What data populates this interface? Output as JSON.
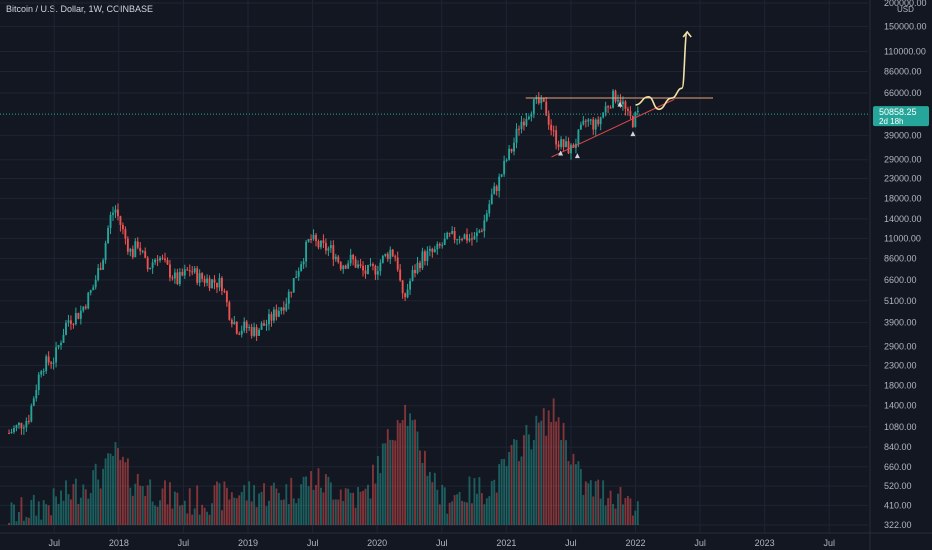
{
  "header": {
    "title": "Bitcoin / U.S. Dollar, 1W, COINBASE",
    "currency": "USD"
  },
  "price_tag": {
    "price": "50858.25",
    "countdown": "2d 18h"
  },
  "colors": {
    "background": "#131722",
    "up": "#26a69a",
    "down": "#ef5350",
    "grid": "#1f2433",
    "axis_text": "#b2b5be",
    "resistance": "#e8a07c",
    "support": "#e04848",
    "projection": "#f2e2a6",
    "price_tag": "#26a69a"
  },
  "chart_data": {
    "type": "candlestick",
    "title": "Bitcoin / U.S. Dollar, 1W, COINBASE",
    "y_scale": "log",
    "y_range": [
      322,
      200000
    ],
    "y_ticks": [
      "200000.00",
      "150000.00",
      "110000.00",
      "86000.00",
      "66000.00",
      "50858.25",
      "39000.00",
      "29000.00",
      "23000.00",
      "18000.00",
      "14000.00",
      "11000.00",
      "8600.00",
      "6600.00",
      "5100.00",
      "3900.00",
      "2900.00",
      "2300.00",
      "1800.00",
      "1400.00",
      "1080.00",
      "840.00",
      "660.00",
      "520.00",
      "410.00",
      "322.00"
    ],
    "x_range": [
      "2017-03",
      "2023-12"
    ],
    "x_ticks": [
      {
        "label": "Jul",
        "date": 2017.5
      },
      {
        "label": "2018",
        "date": 2018.0
      },
      {
        "label": "Jul",
        "date": 2018.5
      },
      {
        "label": "2019",
        "date": 2019.0
      },
      {
        "label": "Jul",
        "date": 2019.5
      },
      {
        "label": "2020",
        "date": 2020.0
      },
      {
        "label": "Jul",
        "date": 2020.5
      },
      {
        "label": "2021",
        "date": 2021.0
      },
      {
        "label": "Jul",
        "date": 2021.5
      },
      {
        "label": "2022",
        "date": 2022.0
      },
      {
        "label": "Jul",
        "date": 2022.5
      },
      {
        "label": "2023",
        "date": 2023.0
      },
      {
        "label": "Jul",
        "date": 2023.5
      }
    ],
    "price_path": [
      [
        2017.15,
        1000
      ],
      [
        2017.3,
        1200
      ],
      [
        2017.4,
        2300
      ],
      [
        2017.5,
        2500
      ],
      [
        2017.6,
        4000
      ],
      [
        2017.7,
        4400
      ],
      [
        2017.8,
        6000
      ],
      [
        2017.88,
        9000
      ],
      [
        2017.93,
        14000
      ],
      [
        2017.97,
        16000
      ],
      [
        2018.05,
        11000
      ],
      [
        2018.1,
        9000
      ],
      [
        2018.15,
        10500
      ],
      [
        2018.22,
        7500
      ],
      [
        2018.3,
        9000
      ],
      [
        2018.35,
        8000
      ],
      [
        2018.45,
        6500
      ],
      [
        2018.55,
        7500
      ],
      [
        2018.62,
        6800
      ],
      [
        2018.72,
        6500
      ],
      [
        2018.8,
        6300
      ],
      [
        2018.85,
        4500
      ],
      [
        2018.92,
        3600
      ],
      [
        2018.98,
        3700
      ],
      [
        2019.05,
        3500
      ],
      [
        2019.15,
        3900
      ],
      [
        2019.3,
        5200
      ],
      [
        2019.4,
        8000
      ],
      [
        2019.48,
        11000
      ],
      [
        2019.55,
        10000
      ],
      [
        2019.65,
        9500
      ],
      [
        2019.72,
        8000
      ],
      [
        2019.8,
        8500
      ],
      [
        2019.9,
        7200
      ],
      [
        2019.98,
        7500
      ],
      [
        2020.1,
        9500
      ],
      [
        2020.15,
        8700
      ],
      [
        2020.2,
        5000
      ],
      [
        2020.27,
        7000
      ],
      [
        2020.35,
        8800
      ],
      [
        2020.45,
        9300
      ],
      [
        2020.55,
        11000
      ],
      [
        2020.65,
        11500
      ],
      [
        2020.75,
        10800
      ],
      [
        2020.82,
        13000
      ],
      [
        2020.88,
        18000
      ],
      [
        2020.95,
        23000
      ],
      [
        2021.0,
        29000
      ],
      [
        2021.05,
        34000
      ],
      [
        2021.1,
        45000
      ],
      [
        2021.15,
        50000
      ],
      [
        2021.2,
        57000
      ],
      [
        2021.26,
        58000
      ],
      [
        2021.3,
        55000
      ],
      [
        2021.36,
        40000
      ],
      [
        2021.42,
        35000
      ],
      [
        2021.5,
        33000
      ],
      [
        2021.56,
        39000
      ],
      [
        2021.62,
        47000
      ],
      [
        2021.7,
        44000
      ],
      [
        2021.76,
        54000
      ],
      [
        2021.82,
        62000
      ],
      [
        2021.86,
        65000
      ],
      [
        2021.9,
        58000
      ],
      [
        2021.94,
        49000
      ],
      [
        2021.98,
        47000
      ],
      [
        2022.02,
        50800
      ]
    ],
    "volume_path": [
      [
        2017.15,
        360
      ],
      [
        2017.5,
        420
      ],
      [
        2017.9,
        620
      ],
      [
        2017.96,
        780
      ],
      [
        2018.1,
        560
      ],
      [
        2018.5,
        420
      ],
      [
        2018.9,
        470
      ],
      [
        2019.3,
        480
      ],
      [
        2019.5,
        560
      ],
      [
        2019.9,
        440
      ],
      [
        2020.2,
        1400
      ],
      [
        2020.5,
        440
      ],
      [
        2020.9,
        520
      ],
      [
        2021.1,
        860
      ],
      [
        2021.38,
        1300
      ],
      [
        2021.6,
        500
      ],
      [
        2021.8,
        480
      ],
      [
        2022.02,
        420
      ]
    ],
    "annotations": {
      "resistance_line": {
        "from": [
          2021.15,
          62000
        ],
        "to": [
          2022.6,
          62000
        ]
      },
      "support_line": {
        "from": [
          2021.35,
          30000
        ],
        "to": [
          2022.3,
          61000
        ]
      },
      "projection_curve": [
        [
          2022.0,
          57000
        ],
        [
          2022.1,
          63000
        ],
        [
          2022.18,
          54000
        ],
        [
          2022.28,
          62000
        ],
        [
          2022.36,
          70000
        ],
        [
          2022.4,
          140000
        ]
      ],
      "markers": [
        [
          2021.42,
          31500
        ],
        [
          2021.55,
          30500
        ],
        [
          2021.88,
          57500
        ],
        [
          2021.98,
          40000
        ]
      ]
    },
    "grid": true
  }
}
